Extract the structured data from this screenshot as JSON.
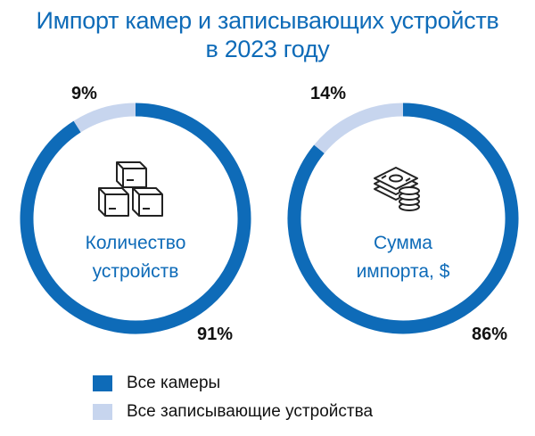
{
  "title_lines": [
    "Импорт камер и записывающих устройств",
    "в 2023 году"
  ],
  "colors": {
    "cameras": "#0e6bb8",
    "recorders": "#c7d5ee",
    "title": "#0e6bb8"
  },
  "chart_data": [
    {
      "type": "pie",
      "center_label_lines": [
        "Количество",
        "устройств"
      ],
      "icon": "boxes-icon",
      "slices": [
        {
          "name": "Все камеры",
          "value": 91,
          "label": "91%"
        },
        {
          "name": "Все записывающие устройства",
          "value": 9,
          "label": "9%"
        }
      ]
    },
    {
      "type": "pie",
      "center_label_lines": [
        "Сумма",
        "импорта, $"
      ],
      "icon": "money-stack-icon",
      "slices": [
        {
          "name": "Все камеры",
          "value": 86,
          "label": "86%"
        },
        {
          "name": "Все записывающие устройства",
          "value": 14,
          "label": "14%"
        }
      ]
    }
  ],
  "legend": [
    {
      "label": "Все камеры",
      "color": "#0e6bb8"
    },
    {
      "label": "Все записывающие устройства",
      "color": "#c7d5ee"
    }
  ]
}
